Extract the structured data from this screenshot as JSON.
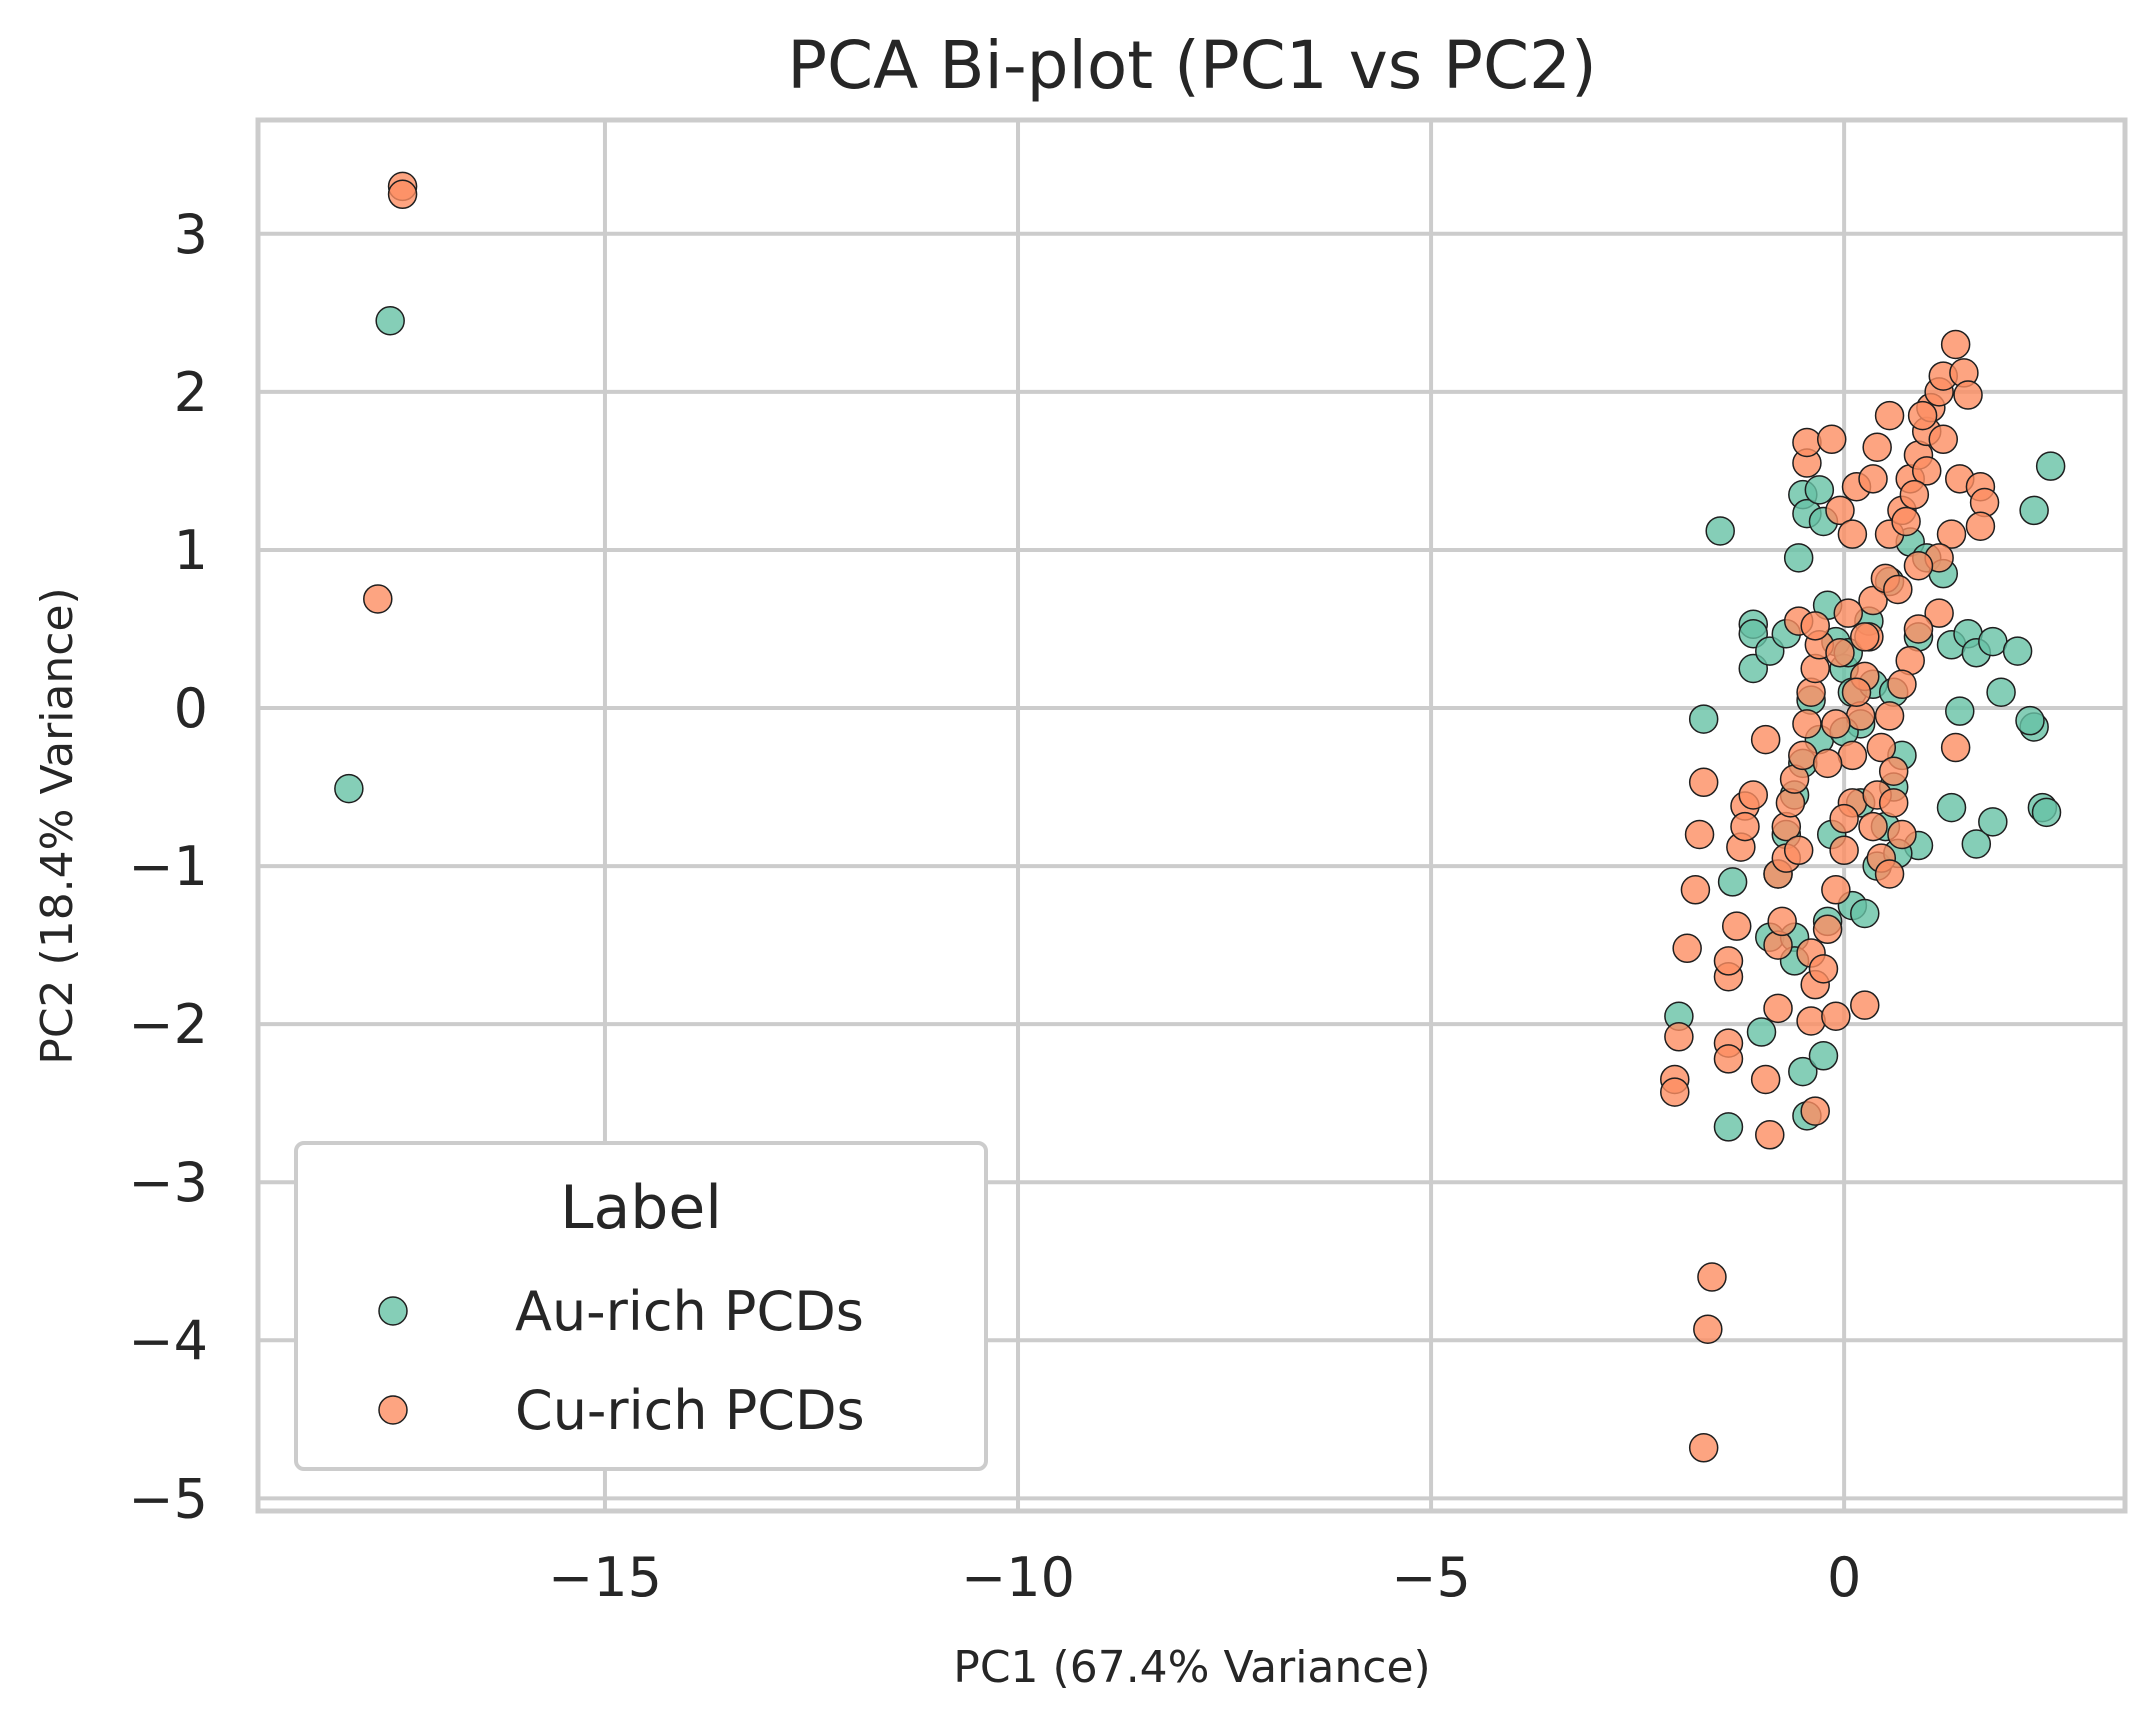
{
  "chart_data": {
    "type": "scatter",
    "title": "PCA Bi-plot (PC1 vs PC2)",
    "xlabel": "PC1 (67.4% Variance)",
    "ylabel": "PC2 (18.4% Variance)",
    "xlim": [
      -19.2,
      3.4
    ],
    "ylim": [
      -5.08,
      3.72
    ],
    "x_ticks": [
      -15,
      -10,
      -5,
      0
    ],
    "x_tick_labels": [
      "−15",
      "−10",
      "−5",
      "0"
    ],
    "y_ticks": [
      3,
      2,
      1,
      0,
      -1,
      -2,
      -3,
      -4,
      -5
    ],
    "y_tick_labels": [
      "3",
      "2",
      "1",
      "0",
      "−1",
      "−2",
      "−3",
      "−4",
      "−5"
    ],
    "grid": true,
    "legend": {
      "title": "Label",
      "placement": "lower-left"
    },
    "series": [
      {
        "name": "Au-rich PCDs",
        "color": "#66c2a5",
        "points": [
          [
            -17.6,
            2.45
          ],
          [
            -18.1,
            -0.51
          ],
          [
            -1.5,
            1.12
          ],
          [
            -1.7,
            -0.07
          ],
          [
            -2.0,
            -1.95
          ],
          [
            -1.4,
            -2.65
          ],
          [
            -1.35,
            -1.1
          ],
          [
            -1.1,
            0.53
          ],
          [
            -1.1,
            0.47
          ],
          [
            -1.1,
            0.25
          ],
          [
            -0.9,
            0.36
          ],
          [
            -0.7,
            0.47
          ],
          [
            -0.55,
            0.95
          ],
          [
            -0.5,
            1.35
          ],
          [
            -0.45,
            1.23
          ],
          [
            -0.3,
            1.38
          ],
          [
            -0.25,
            1.18
          ],
          [
            -0.2,
            0.65
          ],
          [
            -0.1,
            0.42
          ],
          [
            0.0,
            0.25
          ],
          [
            0.1,
            0.1
          ],
          [
            0.2,
            -0.1
          ],
          [
            -0.3,
            -0.2
          ],
          [
            -0.5,
            -0.35
          ],
          [
            -0.6,
            -0.55
          ],
          [
            -0.7,
            -0.8
          ],
          [
            -0.8,
            -1.05
          ],
          [
            -0.9,
            -1.45
          ],
          [
            -1.0,
            -2.05
          ],
          [
            -0.5,
            -2.3
          ],
          [
            -0.25,
            -2.2
          ],
          [
            -0.45,
            -2.58
          ],
          [
            -0.6,
            -1.45
          ],
          [
            -0.2,
            -1.35
          ],
          [
            0.1,
            -1.25
          ],
          [
            0.25,
            -1.3
          ],
          [
            0.4,
            -1.0
          ],
          [
            0.5,
            -0.75
          ],
          [
            0.6,
            -0.5
          ],
          [
            0.7,
            -0.3
          ],
          [
            0.3,
            0.55
          ],
          [
            0.55,
            0.8
          ],
          [
            0.8,
            1.05
          ],
          [
            1.0,
            0.95
          ],
          [
            1.2,
            0.85
          ],
          [
            1.3,
            0.4
          ],
          [
            1.5,
            0.47
          ],
          [
            1.6,
            0.35
          ],
          [
            1.8,
            0.42
          ],
          [
            2.1,
            0.36
          ],
          [
            1.9,
            0.1
          ],
          [
            1.4,
            -0.02
          ],
          [
            2.3,
            1.25
          ],
          [
            2.5,
            1.53
          ],
          [
            2.3,
            -0.12
          ],
          [
            2.25,
            -0.08
          ],
          [
            2.4,
            -0.63
          ],
          [
            2.45,
            -0.66
          ],
          [
            1.3,
            -0.63
          ],
          [
            1.6,
            -0.86
          ],
          [
            1.8,
            -0.72
          ],
          [
            0.9,
            -0.87
          ],
          [
            0.65,
            -0.92
          ],
          [
            0.2,
            -0.6
          ],
          [
            0.0,
            -0.15
          ],
          [
            -0.4,
            0.05
          ],
          [
            0.05,
            0.35
          ],
          [
            0.35,
            0.15
          ],
          [
            0.6,
            0.1
          ],
          [
            0.9,
            0.45
          ],
          [
            -0.15,
            -0.8
          ],
          [
            -0.6,
            -1.6
          ]
        ]
      },
      {
        "name": "Cu-rich PCDs",
        "color": "#fc8d62",
        "points": [
          [
            -17.45,
            3.3
          ],
          [
            -17.45,
            3.25
          ],
          [
            -17.75,
            0.69
          ],
          [
            -1.6,
            -3.6
          ],
          [
            -1.65,
            -3.93
          ],
          [
            -1.7,
            -4.68
          ],
          [
            -2.05,
            -2.35
          ],
          [
            -2.05,
            -2.43
          ],
          [
            -2.0,
            -2.08
          ],
          [
            -1.9,
            -1.52
          ],
          [
            -1.8,
            -1.15
          ],
          [
            -1.75,
            -0.8
          ],
          [
            -1.7,
            -0.47
          ],
          [
            -1.4,
            -2.12
          ],
          [
            -1.4,
            -2.22
          ],
          [
            -1.4,
            -1.7
          ],
          [
            -1.4,
            -1.6
          ],
          [
            -1.3,
            -1.38
          ],
          [
            -1.25,
            -0.88
          ],
          [
            -1.2,
            -0.62
          ],
          [
            -1.2,
            -0.75
          ],
          [
            -0.95,
            -2.35
          ],
          [
            -0.9,
            -2.7
          ],
          [
            -0.8,
            -1.5
          ],
          [
            -0.8,
            -1.05
          ],
          [
            -0.75,
            -1.35
          ],
          [
            -0.7,
            -0.95
          ],
          [
            -0.7,
            -0.75
          ],
          [
            -0.65,
            -0.6
          ],
          [
            -0.6,
            -0.45
          ],
          [
            -0.5,
            -0.3
          ],
          [
            -0.45,
            -0.1
          ],
          [
            -0.4,
            0.1
          ],
          [
            -0.35,
            0.25
          ],
          [
            -0.3,
            0.4
          ],
          [
            -0.55,
            0.55
          ],
          [
            -0.35,
            0.52
          ],
          [
            -0.4,
            -1.55
          ],
          [
            -0.4,
            -1.98
          ],
          [
            -0.35,
            -1.75
          ],
          [
            -0.25,
            -1.65
          ],
          [
            -0.35,
            -2.55
          ],
          [
            -0.1,
            -1.95
          ],
          [
            0.25,
            -1.88
          ],
          [
            -0.2,
            -1.4
          ],
          [
            -0.1,
            -1.15
          ],
          [
            0.0,
            -0.9
          ],
          [
            0.1,
            -0.6
          ],
          [
            0.1,
            -0.3
          ],
          [
            0.2,
            -0.05
          ],
          [
            0.25,
            0.2
          ],
          [
            0.3,
            0.45
          ],
          [
            0.35,
            0.68
          ],
          [
            0.5,
            0.82
          ],
          [
            0.55,
            1.1
          ],
          [
            0.7,
            1.25
          ],
          [
            0.8,
            1.45
          ],
          [
            0.9,
            1.6
          ],
          [
            1.0,
            1.75
          ],
          [
            1.05,
            1.9
          ],
          [
            1.15,
            2.0
          ],
          [
            1.2,
            2.1
          ],
          [
            1.35,
            2.3
          ],
          [
            1.45,
            2.12
          ],
          [
            1.5,
            1.98
          ],
          [
            1.2,
            1.7
          ],
          [
            1.0,
            1.5
          ],
          [
            0.85,
            1.35
          ],
          [
            0.75,
            1.18
          ],
          [
            1.4,
            1.45
          ],
          [
            1.65,
            1.4
          ],
          [
            1.7,
            1.3
          ],
          [
            1.65,
            1.15
          ],
          [
            1.3,
            1.1
          ],
          [
            1.15,
            0.95
          ],
          [
            0.9,
            0.9
          ],
          [
            0.65,
            0.75
          ],
          [
            1.15,
            0.6
          ],
          [
            0.9,
            0.5
          ],
          [
            0.8,
            0.3
          ],
          [
            0.7,
            0.15
          ],
          [
            0.55,
            -0.05
          ],
          [
            0.45,
            -0.25
          ],
          [
            0.6,
            -0.4
          ],
          [
            0.4,
            -0.55
          ],
          [
            0.35,
            -0.75
          ],
          [
            0.45,
            -0.95
          ],
          [
            0.55,
            -1.05
          ],
          [
            1.35,
            -0.25
          ],
          [
            0.6,
            -0.6
          ],
          [
            -0.05,
            1.25
          ],
          [
            0.1,
            1.1
          ],
          [
            -0.45,
            1.55
          ],
          [
            -0.45,
            1.68
          ],
          [
            -0.15,
            1.7
          ],
          [
            0.15,
            1.4
          ],
          [
            0.35,
            1.45
          ],
          [
            0.4,
            1.65
          ],
          [
            0.55,
            1.85
          ],
          [
            0.95,
            1.85
          ],
          [
            0.25,
            0.45
          ],
          [
            0.05,
            0.6
          ],
          [
            -0.05,
            0.35
          ],
          [
            0.15,
            0.1
          ],
          [
            -0.1,
            -0.1
          ],
          [
            -0.2,
            -0.35
          ],
          [
            -0.55,
            -0.9
          ],
          [
            0.0,
            -0.7
          ],
          [
            0.7,
            -0.8
          ],
          [
            -0.8,
            -1.9
          ],
          [
            -1.1,
            -0.55
          ],
          [
            -0.95,
            -0.2
          ]
        ]
      }
    ]
  }
}
